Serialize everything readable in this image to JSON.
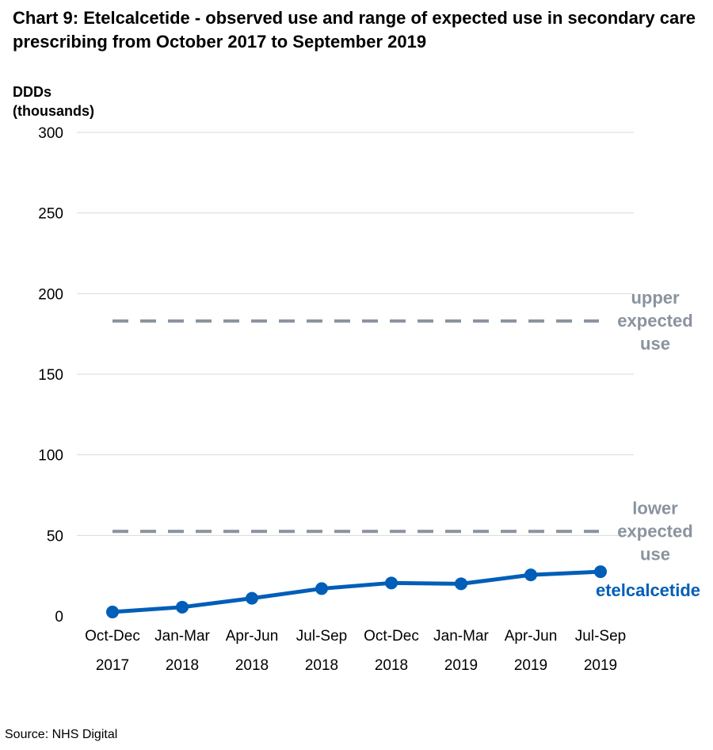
{
  "chart_data": {
    "type": "line",
    "title": "Chart 9: Etelcalcetide - observed use and range of expected use in secondary care prescribing from October 2017 to September 2019",
    "ylabel_line1": "DDDs",
    "ylabel_line2": "(thousands)",
    "xlabel": "",
    "ylim": [
      0,
      300
    ],
    "yticks": [
      0,
      50,
      100,
      150,
      200,
      250,
      300
    ],
    "grid": true,
    "categories": [
      {
        "period": "Oct-Dec",
        "year": "2017"
      },
      {
        "period": "Jan-Mar",
        "year": "2018"
      },
      {
        "period": "Apr-Jun",
        "year": "2018"
      },
      {
        "period": "Jul-Sep",
        "year": "2018"
      },
      {
        "period": "Oct-Dec",
        "year": "2018"
      },
      {
        "period": "Jan-Mar",
        "year": "2019"
      },
      {
        "period": "Apr-Jun",
        "year": "2019"
      },
      {
        "period": "Jul-Sep",
        "year": "2019"
      }
    ],
    "series": [
      {
        "name": "etelcalcetide",
        "color": "#005EB8",
        "values": [
          2.5,
          5.5,
          11,
          17,
          20.5,
          20,
          25.5,
          27.5
        ]
      }
    ],
    "reference_lines": [
      {
        "name_lines": [
          "upper",
          "expected",
          "use"
        ],
        "value": 183,
        "color": "#8A939E",
        "style": "dashed"
      },
      {
        "name_lines": [
          "lower",
          "expected",
          "use"
        ],
        "value": 52.5,
        "color": "#8A939E",
        "style": "dashed"
      }
    ],
    "gridline_color": "#D9D9D9"
  },
  "source": "Source: NHS Digital"
}
